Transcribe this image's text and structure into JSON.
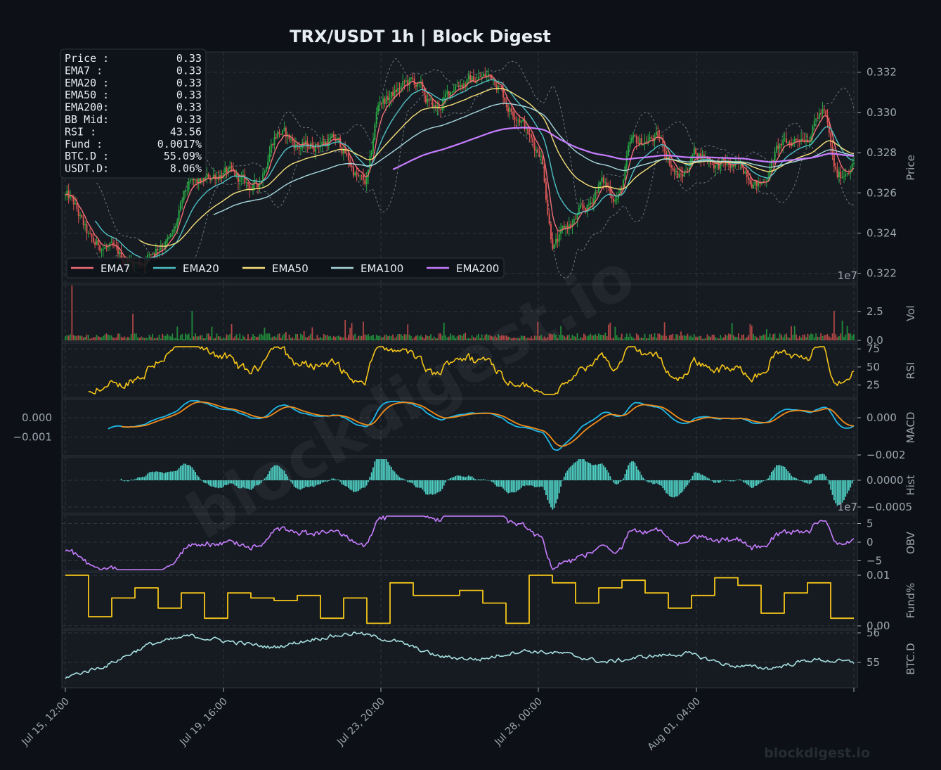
{
  "title": "TRX/USDT  1h  |  Block Digest",
  "watermark": "blockdigest.io",
  "footer_brand": "blockdigest.io",
  "info_box": [
    {
      "label": "Price :",
      "value": "0.33"
    },
    {
      "label": "EMA7  :",
      "value": "0.33"
    },
    {
      "label": "EMA20 :",
      "value": "0.33"
    },
    {
      "label": "EMA50 :",
      "value": "0.33"
    },
    {
      "label": "EMA200:",
      "value": "0.33"
    },
    {
      "label": "BB Mid:",
      "value": "0.33"
    },
    {
      "label": "RSI   :",
      "value": "43.56"
    },
    {
      "label": "Fund  :",
      "value": "0.0017%"
    },
    {
      "label": "BTC.D :",
      "value": "55.09%"
    },
    {
      "label": "USDT.D:",
      "value": "8.06%"
    }
  ],
  "legend": [
    {
      "name": "EMA7",
      "color": "#f06e74"
    },
    {
      "name": "EMA20",
      "color": "#4fc1c4"
    },
    {
      "name": "EMA50",
      "color": "#f7e07a"
    },
    {
      "name": "EMA100",
      "color": "#a7d8dc"
    },
    {
      "name": "EMA200",
      "color": "#c77dff"
    }
  ],
  "x_ticks": [
    "Jul 15, 12:00",
    "Jul 19, 16:00",
    "Jul 23, 20:00",
    "Jul 28, 00:00",
    "Aug 01, 04:00"
  ],
  "panels": {
    "price": {
      "ylabel": "Price",
      "ticks": [
        "0.332",
        "0.330",
        "0.328",
        "0.326",
        "0.324",
        "0.322"
      ],
      "ylim": [
        0.3215,
        0.333
      ]
    },
    "volume": {
      "ylabel": "Vol",
      "ticks": [
        "2.5",
        "0.0"
      ],
      "offset_text": "1e7"
    },
    "rsi": {
      "ylabel": "RSI",
      "ticks": [
        "75",
        "50",
        "25"
      ]
    },
    "macd": {
      "ylabel": "MACD",
      "ticks_right": [
        "0.000",
        "−0.002"
      ],
      "ticks_left": [
        "0.000",
        "−0.001"
      ]
    },
    "hist": {
      "ylabel": "Hist",
      "ticks": [
        "0.0000",
        "−0.0005"
      ],
      "offset_text": "1e7"
    },
    "obv": {
      "ylabel": "OBV",
      "ticks": [
        "5",
        "0",
        "−5"
      ]
    },
    "fund": {
      "ylabel": "Fund%",
      "ticks": [
        "0.01",
        "0.00"
      ]
    },
    "btcd": {
      "ylabel": "BTC.D",
      "ticks": [
        "56",
        "55"
      ]
    }
  },
  "colors": {
    "background": "#0d1117",
    "panel": "#161b22",
    "grid": "#30363d",
    "text": "#9da5b0",
    "up": "#26a641",
    "down": "#d9534f",
    "rsi": "#f5c518",
    "macd": "#1fb8e8",
    "signal": "#f08c1a",
    "hist": "#4fd1c5",
    "obv": "#c77dff",
    "fund": "#f5c518",
    "btcd": "#a7e0e0"
  },
  "chart_data": {
    "type": "line",
    "symbol": "TRX/USDT",
    "interval": "1h",
    "price_anchors": {
      "x": [
        0,
        0.04,
        0.09,
        0.13,
        0.16,
        0.2,
        0.24,
        0.27,
        0.3,
        0.34,
        0.38,
        0.4,
        0.44,
        0.47,
        0.5,
        0.54,
        0.57,
        0.6,
        0.62,
        0.64,
        0.66,
        0.68,
        0.7,
        0.72,
        0.75,
        0.78,
        0.8,
        0.83,
        0.86,
        0.88,
        0.91,
        0.94,
        0.96,
        0.98,
        1.0
      ],
      "y": [
        0.3258,
        0.3234,
        0.3225,
        0.3236,
        0.3264,
        0.327,
        0.3263,
        0.329,
        0.3283,
        0.3286,
        0.3265,
        0.3306,
        0.3315,
        0.3302,
        0.3315,
        0.3318,
        0.33,
        0.3282,
        0.3235,
        0.3244,
        0.3252,
        0.3265,
        0.3258,
        0.3285,
        0.3287,
        0.3268,
        0.328,
        0.3274,
        0.3272,
        0.3264,
        0.3284,
        0.3289,
        0.33,
        0.3268,
        0.3275
      ]
    },
    "rsi_last": 43.56,
    "funding_levels": [
      0.01,
      0.0018,
      0.0055,
      0.0075,
      0.0035,
      0.0065,
      0.0015,
      0.0065,
      0.0055,
      0.005,
      0.006,
      0.0015,
      0.0055,
      0.0005,
      0.0085,
      0.006,
      0.006,
      0.007,
      0.0045,
      0.0005,
      0.01,
      0.0085,
      0.0045,
      0.0075,
      0.009,
      0.0065,
      0.0035,
      0.006,
      0.0095,
      0.008,
      0.0025,
      0.0065,
      0.0085,
      0.0015
    ],
    "btcd_last": 55.09,
    "usdtd_last": 8.06
  }
}
